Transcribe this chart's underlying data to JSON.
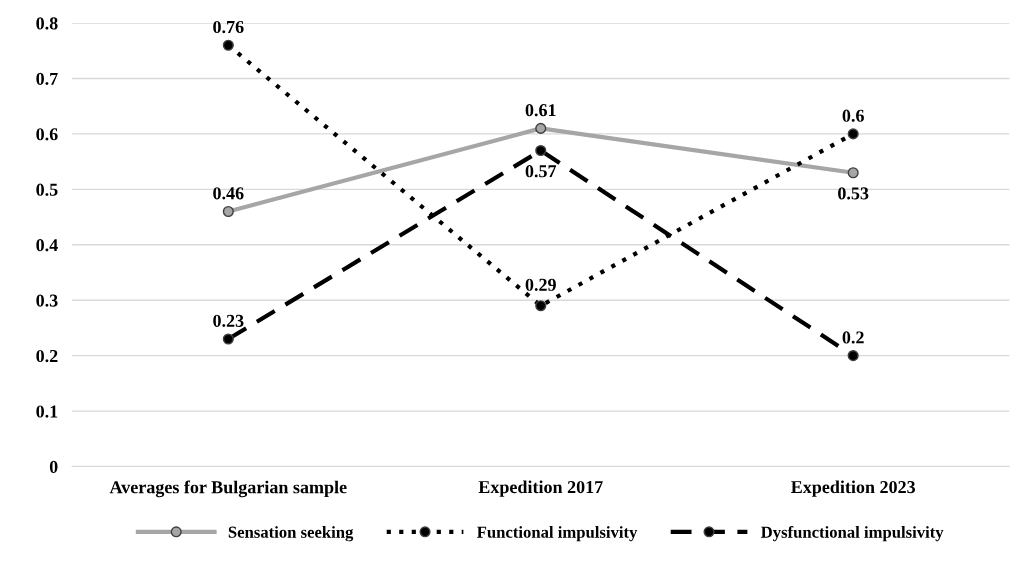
{
  "chart_data": {
    "type": "line",
    "categories": [
      "Averages for Bulgarian sample",
      "Expedition 2017",
      "Expedition 2023"
    ],
    "series": [
      {
        "name": "Sensation seeking",
        "color": "#a6a6a6",
        "values": [
          0.46,
          0.61,
          0.53
        ],
        "line_style": "solid"
      },
      {
        "name": "Functional impulsivity",
        "color": "#000000",
        "values": [
          0.76,
          0.29,
          0.6
        ],
        "line_style": "dotted"
      },
      {
        "name": "Dysfunctional impulsivity",
        "color": "#000000",
        "values": [
          0.23,
          0.57,
          0.2
        ],
        "line_style": "dashed"
      }
    ],
    "ylim": [
      0,
      0.8
    ],
    "yticks": [
      0,
      0.1,
      0.2,
      0.3,
      0.4,
      0.5,
      0.6,
      0.7,
      0.8
    ],
    "grid": "y",
    "legend": "bottom",
    "marker": "circle",
    "data_labels": true
  }
}
